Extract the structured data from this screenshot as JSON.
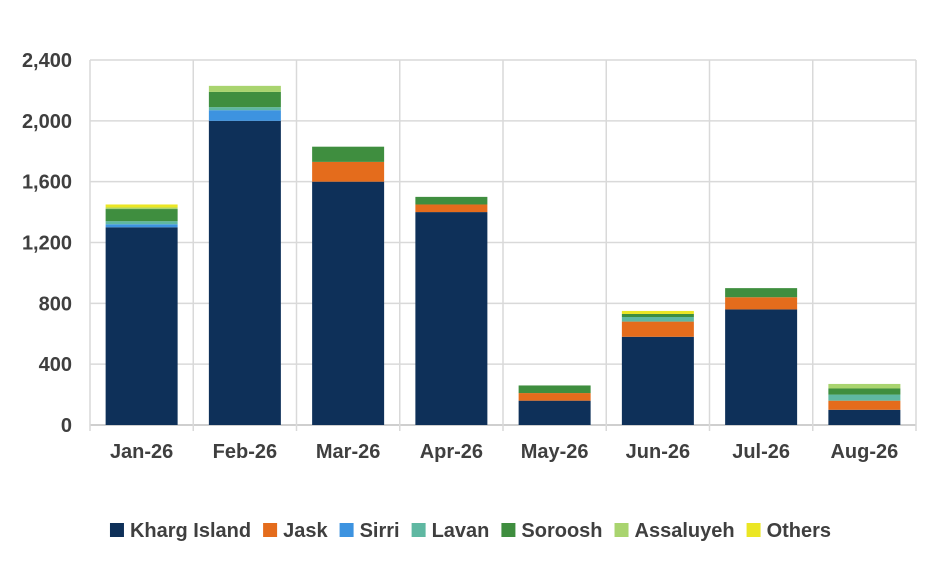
{
  "chart_data": {
    "type": "bar",
    "stacked": true,
    "title": "",
    "xlabel": "",
    "ylabel": "",
    "ylim": [
      0,
      2400
    ],
    "y_ticks": [
      0,
      400,
      800,
      1200,
      1600,
      2000,
      2400
    ],
    "y_tick_labels": [
      "0",
      "400",
      "800",
      "1,200",
      "1,600",
      "2,000",
      "2,400"
    ],
    "grid": true,
    "legend_position": "bottom",
    "categories": [
      "Jan-26",
      "Feb-26",
      "Mar-26",
      "Apr-26",
      "May-26",
      "Jun-26",
      "Jul-26",
      "Aug-26"
    ],
    "series": [
      {
        "name": "Kharg Island",
        "color": "#0e3059",
        "values": [
          1300,
          2000,
          1600,
          1400,
          160,
          580,
          760,
          100
        ]
      },
      {
        "name": "Jask",
        "color": "#e46c1c",
        "values": [
          0,
          0,
          130,
          50,
          50,
          100,
          80,
          60
        ]
      },
      {
        "name": "Sirri",
        "color": "#3d93e0",
        "values": [
          20,
          70,
          0,
          0,
          0,
          0,
          0,
          0
        ]
      },
      {
        "name": "Lavan",
        "color": "#5fb8a2",
        "values": [
          20,
          20,
          0,
          0,
          0,
          30,
          0,
          40
        ]
      },
      {
        "name": "Soroosh",
        "color": "#3f8e3f",
        "values": [
          80,
          100,
          100,
          50,
          50,
          20,
          60,
          40
        ]
      },
      {
        "name": "Assaluyeh",
        "color": "#a9d46f",
        "values": [
          10,
          40,
          0,
          0,
          0,
          0,
          0,
          30
        ]
      },
      {
        "name": "Others",
        "color": "#ebe624",
        "values": [
          20,
          0,
          0,
          0,
          0,
          20,
          0,
          0
        ]
      }
    ]
  }
}
